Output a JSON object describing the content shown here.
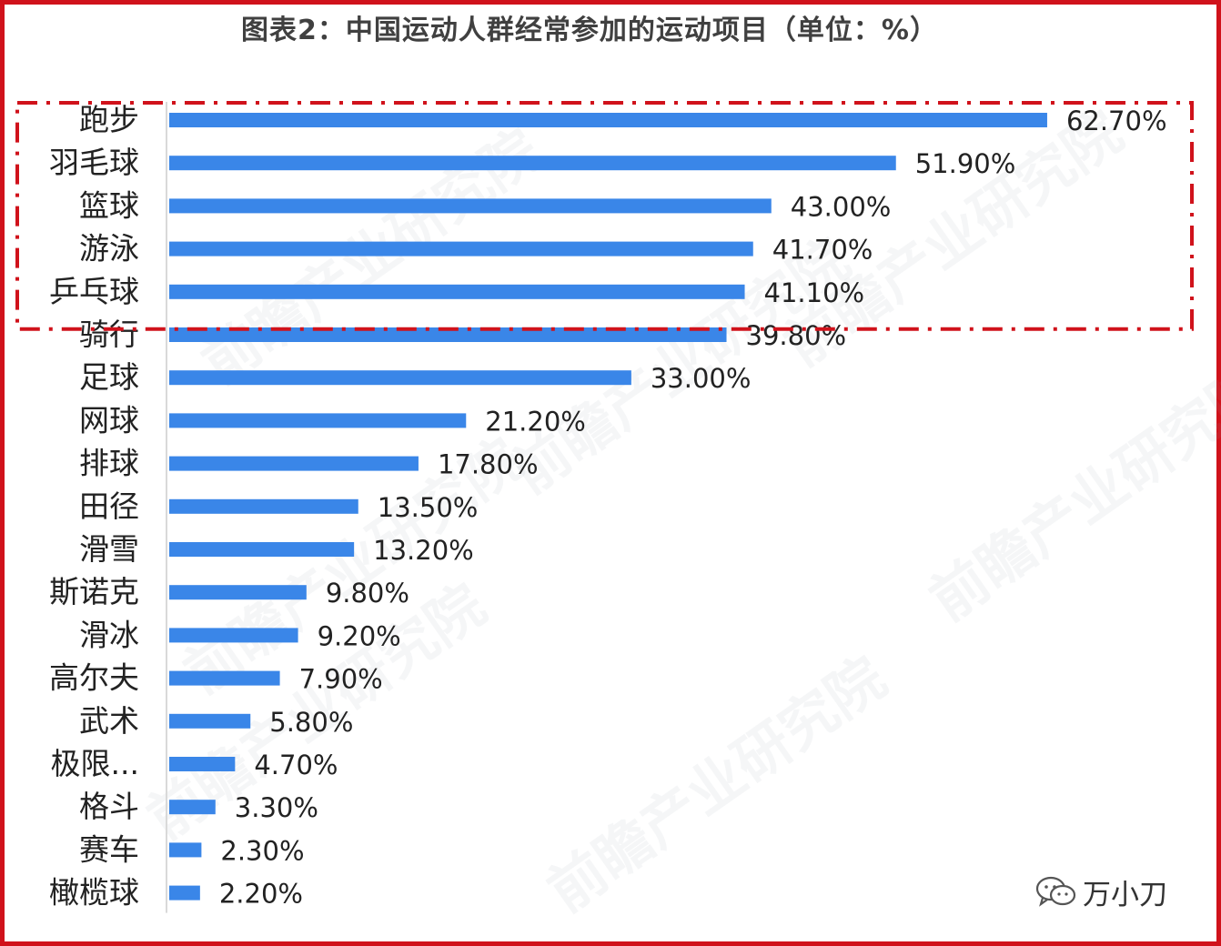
{
  "title": "图表2：中国运动人群经常参加的运动项目（单位：%）",
  "chart_data": {
    "type": "bar",
    "orientation": "horizontal",
    "title": "图表2：中国运动人群经常参加的运动项目（单位：%）",
    "unit": "%",
    "categories": [
      "跑步",
      "羽毛球",
      "篮球",
      "游泳",
      "乒乓球",
      "骑行",
      "足球",
      "网球",
      "排球",
      "田径",
      "滑雪",
      "斯诺克",
      "滑冰",
      "高尔夫",
      "武术",
      "极限...",
      "格斗",
      "赛车",
      "橄榄球"
    ],
    "values": [
      62.7,
      51.9,
      43.0,
      41.7,
      41.1,
      39.8,
      33.0,
      21.2,
      17.8,
      13.5,
      13.2,
      9.8,
      9.2,
      7.9,
      5.8,
      4.7,
      3.3,
      2.3,
      2.2
    ],
    "value_labels": [
      "62.70%",
      "51.90%",
      "43.00%",
      "41.70%",
      "41.10%",
      "39.80%",
      "33.00%",
      "21.20%",
      "17.80%",
      "13.50%",
      "13.20%",
      "9.80%",
      "9.20%",
      "7.90%",
      "5.80%",
      "4.70%",
      "3.30%",
      "2.30%",
      "2.20%"
    ],
    "highlight": {
      "count": 5,
      "style": "red dash-dot box"
    },
    "colors": {
      "bar": "#3a86e8",
      "highlight": "#d0121b",
      "frame": "#d0121b"
    },
    "grid": false,
    "legend": "none"
  },
  "watermark": {
    "text": "前瞻产业研究院"
  },
  "brand": {
    "text": "万小刀",
    "icon": "wechat-icon"
  }
}
